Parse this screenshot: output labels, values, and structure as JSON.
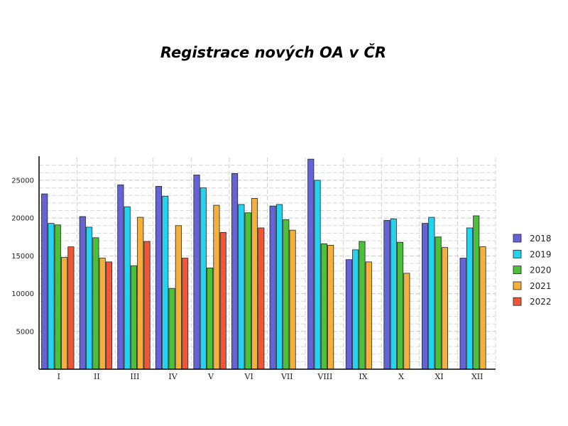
{
  "chart_data": {
    "type": "bar",
    "title": "Registrace nových OA v ČR",
    "xlabel": "",
    "ylabel": "",
    "categories": [
      "I",
      "II",
      "III",
      "IV",
      "V",
      "VI",
      "VII",
      "VIII",
      "IX",
      "X",
      "XI",
      "XII"
    ],
    "yticks": [
      5000,
      10000,
      15000,
      20000,
      25000
    ],
    "ylim": [
      0,
      28000
    ],
    "grid": true,
    "legend_position": "right",
    "series": [
      {
        "name": "2018",
        "color": "#6464d8",
        "values": [
          23200,
          20200,
          24400,
          24200,
          25700,
          25900,
          21600,
          27800,
          14500,
          19700,
          19300,
          14700
        ]
      },
      {
        "name": "2019",
        "color": "#22d4f0",
        "values": [
          19300,
          18800,
          21500,
          22900,
          24000,
          21800,
          21800,
          25000,
          15800,
          19900,
          20100,
          18700
        ]
      },
      {
        "name": "2020",
        "color": "#4cc038",
        "values": [
          19100,
          17400,
          13700,
          10700,
          13400,
          20700,
          19800,
          16600,
          16900,
          16800,
          17500,
          20300
        ]
      },
      {
        "name": "2021",
        "color": "#f4b03c",
        "values": [
          14800,
          14700,
          20100,
          19000,
          21700,
          22600,
          18400,
          16400,
          14200,
          12700,
          16100,
          16200
        ]
      },
      {
        "name": "2022",
        "color": "#ee5838",
        "values": [
          16200,
          14200,
          16900,
          14700,
          18100,
          18700,
          null,
          null,
          null,
          null,
          null,
          null
        ]
      }
    ]
  }
}
